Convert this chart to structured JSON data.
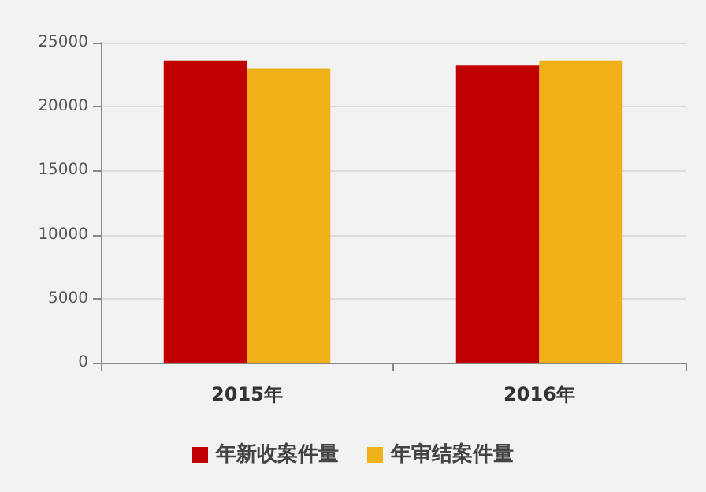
{
  "chart_data": {
    "type": "bar",
    "categories": [
      "2015年",
      "2016年"
    ],
    "series": [
      {
        "name": "年新收案件量",
        "color": "#c00000",
        "values": [
          23600,
          23200
        ]
      },
      {
        "name": "年审结案件量",
        "color": "#f0b018",
        "values": [
          23000,
          23600
        ]
      }
    ],
    "ylim": [
      0,
      25000
    ],
    "yticks": [
      0,
      5000,
      10000,
      15000,
      20000,
      25000
    ],
    "grid": "y",
    "legend": "bottom"
  }
}
